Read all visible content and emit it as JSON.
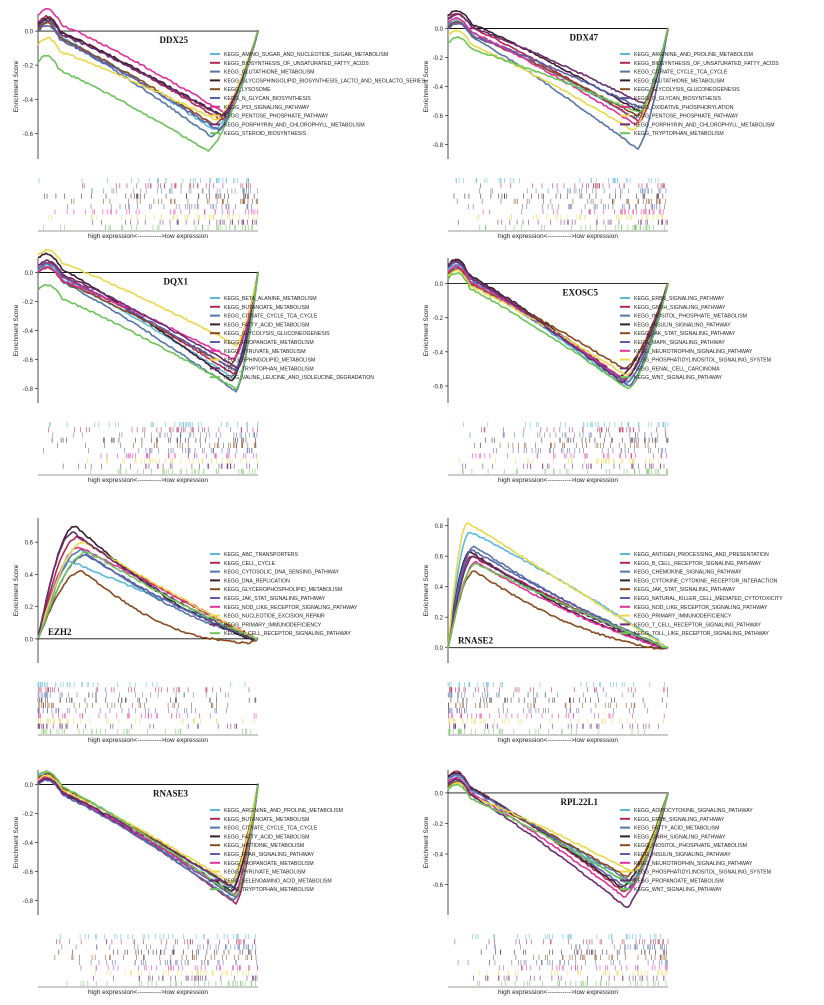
{
  "figure": {
    "y_axis_label": "Enrichment Score",
    "x_axis_label": "high expression<----------->low expression"
  },
  "chart_data": [
    {
      "type": "line",
      "gene": "DDX25",
      "direction": "negative",
      "ylabel": "Enrichment Score",
      "xlabel": "high expression<----------->low expression",
      "ylim": [
        -0.75,
        0.1
      ],
      "yticks": [
        0.0,
        -0.2,
        -0.4,
        -0.6
      ],
      "series": [
        {
          "name": "KEGG_AMINO_SUGAR_AND_NUCLEOTIDE_SUGAR_METABOLISM",
          "color": "#5bb8d8",
          "min_es": -0.58,
          "min_pos": 0.8,
          "start": 0.02
        },
        {
          "name": "KEGG_BIOSYNTHESIS_OF_UNSATURATED_FATTY_ACIDS",
          "color": "#b0284f",
          "min_es": -0.52,
          "min_pos": 0.83,
          "start": 0.05
        },
        {
          "name": "KEGG_GLUTATHIONE_METABOLISM",
          "color": "#5676a8",
          "min_es": -0.62,
          "min_pos": 0.79,
          "start": 0.02
        },
        {
          "name": "KEGG_GLYCOSPHINGOLIPID_BIOSYNTHESIS_LACTO_AND_NEOLACTO_SERIES",
          "color": "#3a1d2e",
          "min_es": -0.5,
          "min_pos": 0.84,
          "start": 0.04
        },
        {
          "name": "KEGG_LYSOSOME",
          "color": "#8a4a1e",
          "min_es": -0.55,
          "min_pos": 0.8,
          "start": 0.01
        },
        {
          "name": "KEGG_N_GLYCAN_BIOSYNTHESIS",
          "color": "#5b5fa8",
          "min_es": -0.58,
          "min_pos": 0.82,
          "start": 0.0
        },
        {
          "name": "KEGG_P53_SIGNALING_PATHWAY",
          "color": "#e0309a",
          "min_es": -0.48,
          "min_pos": 0.85,
          "start": 0.09
        },
        {
          "name": "KEGG_PENTOSE_PHOSPHATE_PATHWAY",
          "color": "#e8d84a",
          "min_es": -0.52,
          "min_pos": 0.81,
          "start": -0.08
        },
        {
          "name": "KEGG_PORPHYRIN_AND_CHLOROPHYLL_METABOLISM",
          "color": "#6b2c6e",
          "min_es": -0.5,
          "min_pos": 0.83,
          "start": 0.03
        },
        {
          "name": "KEGG_STEROID_BIOSYNTHESIS",
          "color": "#6cc35a",
          "min_es": -0.7,
          "min_pos": 0.77,
          "start": -0.18
        }
      ]
    },
    {
      "type": "line",
      "gene": "DDX47",
      "direction": "negative",
      "ylabel": "Enrichment Score",
      "xlabel": "high expression<----------->low expression",
      "ylim": [
        -0.9,
        0.1
      ],
      "yticks": [
        0.0,
        -0.2,
        -0.4,
        -0.6,
        -0.8
      ],
      "series": [
        {
          "name": "KEGG_ARGININE_AND_PROLINE_METABOLISM",
          "color": "#5bb8d8",
          "min_es": -0.62,
          "min_pos": 0.85,
          "start": 0.03
        },
        {
          "name": "KEGG_BIOSYNTHESIS_OF_UNSATURATED_FATTY_ACIDS",
          "color": "#b0284f",
          "min_es": -0.64,
          "min_pos": 0.87,
          "start": 0.07
        },
        {
          "name": "KEGG_CITRATE_CYCLE_TCA_CYCLE",
          "color": "#5676a8",
          "min_es": -0.83,
          "min_pos": 0.86,
          "start": 0.02
        },
        {
          "name": "KEGG_GLUTATHIONE_METABOLISM",
          "color": "#3a1d2e",
          "min_es": -0.58,
          "min_pos": 0.88,
          "start": 0.09
        },
        {
          "name": "KEGG_GLYCOLYSIS_GLUCONEOGENESIS",
          "color": "#8a4a1e",
          "min_es": -0.6,
          "min_pos": 0.86,
          "start": 0.01
        },
        {
          "name": "KEGG_O_GLYCAN_BIOSYNTHESIS",
          "color": "#5b5fa8",
          "min_es": -0.55,
          "min_pos": 0.88,
          "start": 0.0
        },
        {
          "name": "KEGG_OXIDATIVE_PHOSPHORYLATION",
          "color": "#e0309a",
          "min_es": -0.66,
          "min_pos": 0.85,
          "start": 0.04
        },
        {
          "name": "KEGG_PENTOSE_PHOSPHATE_PATHWAY",
          "color": "#e8d84a",
          "min_es": -0.7,
          "min_pos": 0.84,
          "start": -0.05
        },
        {
          "name": "KEGG_PORPHYRIN_AND_CHLOROPHYLL_METABOLISM",
          "color": "#6b2c6e",
          "min_es": -0.52,
          "min_pos": 0.89,
          "start": 0.06
        },
        {
          "name": "KEGG_TRYPTOPHAN_METABOLISM",
          "color": "#6cc35a",
          "min_es": -0.58,
          "min_pos": 0.87,
          "start": -0.1
        }
      ]
    },
    {
      "type": "line",
      "gene": "DQX1",
      "direction": "negative",
      "ylabel": "Enrichment Score",
      "xlabel": "high expression<----------->low expression",
      "ylim": [
        -0.9,
        0.1
      ],
      "yticks": [
        0.0,
        -0.2,
        -0.4,
        -0.6,
        -0.8
      ],
      "series": [
        {
          "name": "KEGG_BETA_ALANINE_METABOLISM",
          "color": "#5bb8d8",
          "min_es": -0.72,
          "min_pos": 0.88,
          "start": 0.02
        },
        {
          "name": "KEGG_BUTANOATE_METABOLISM",
          "color": "#b0284f",
          "min_es": -0.7,
          "min_pos": 0.89,
          "start": 0.04
        },
        {
          "name": "KEGG_CITRATE_CYCLE_TCA_CYCLE",
          "color": "#5676a8",
          "min_es": -0.82,
          "min_pos": 0.9,
          "start": 0.01
        },
        {
          "name": "KEGG_FATTY_ACID_METABOLISM",
          "color": "#3a1d2e",
          "min_es": -0.75,
          "min_pos": 0.88,
          "start": 0.1
        },
        {
          "name": "KEGG_GLYCOLYSIS_GLUCONEOGENESIS",
          "color": "#8a4a1e",
          "min_es": -0.65,
          "min_pos": 0.87,
          "start": 0.0
        },
        {
          "name": "KEGG_PROPANOATE_METABOLISM",
          "color": "#5b5fa8",
          "min_es": -0.68,
          "min_pos": 0.9,
          "start": 0.03
        },
        {
          "name": "KEGG_PYRUVATE_METABOLISM",
          "color": "#e0309a",
          "min_es": -0.6,
          "min_pos": 0.89,
          "start": 0.0
        },
        {
          "name": "KEGG_SPHINGOLIPID_METABOLISM",
          "color": "#e8d84a",
          "min_es": -0.5,
          "min_pos": 0.9,
          "start": 0.12
        },
        {
          "name": "KEGG_TRYPTOPHAN_METABOLISM",
          "color": "#6b2c6e",
          "min_es": -0.66,
          "min_pos": 0.91,
          "start": 0.05
        },
        {
          "name": "KEGG_VALINE_LEUCINE_AND_ISOLEUCINE_DEGRADATION",
          "color": "#6cc35a",
          "min_es": -0.8,
          "min_pos": 0.9,
          "start": -0.12
        }
      ]
    },
    {
      "type": "line",
      "gene": "EXOSC5",
      "direction": "negative",
      "ylabel": "Enrichment Score",
      "xlabel": "high expression<----------->low expression",
      "ylim": [
        -0.7,
        0.15
      ],
      "yticks": [
        0.0,
        -0.2,
        -0.4,
        -0.6
      ],
      "series": [
        {
          "name": "KEGG_ERBB_SIGNALING_PATHWAY",
          "color": "#5bb8d8",
          "min_es": -0.6,
          "min_pos": 0.8,
          "start": 0.08
        },
        {
          "name": "KEGG_GNRH_SIGNALING_PATHWAY",
          "color": "#b0284f",
          "min_es": -0.57,
          "min_pos": 0.79,
          "start": 0.1
        },
        {
          "name": "KEGG_INOSITOL_PHOSPHATE_METABOLISM",
          "color": "#5676a8",
          "min_es": -0.58,
          "min_pos": 0.81,
          "start": 0.06
        },
        {
          "name": "KEGG_INSULIN_SIGNALING_PATHWAY",
          "color": "#3a1d2e",
          "min_es": -0.55,
          "min_pos": 0.78,
          "start": 0.11
        },
        {
          "name": "KEGG_JAK_STAT_SIGNALING_PATHWAY",
          "color": "#8a4a1e",
          "min_es": -0.5,
          "min_pos": 0.8,
          "start": 0.05
        },
        {
          "name": "KEGG_MAPK_SIGNALING_PATHWAY",
          "color": "#5b5fa8",
          "min_es": -0.6,
          "min_pos": 0.82,
          "start": 0.09
        },
        {
          "name": "KEGG_NEUROTROPHIN_SIGNALING_PATHWAY",
          "color": "#e0309a",
          "min_es": -0.56,
          "min_pos": 0.8,
          "start": 0.07
        },
        {
          "name": "KEGG_PHOSPHATIDYLINOSITOL_SIGNALING_SYSTEM",
          "color": "#e8d84a",
          "min_es": -0.54,
          "min_pos": 0.81,
          "start": 0.04
        },
        {
          "name": "KEGG_RENAL_CELL_CARCINOMA",
          "color": "#6b2c6e",
          "min_es": -0.58,
          "min_pos": 0.79,
          "start": 0.1
        },
        {
          "name": "KEGG_WNT_SIGNALING_PATHWAY",
          "color": "#6cc35a",
          "min_es": -0.62,
          "min_pos": 0.82,
          "start": 0.03
        }
      ]
    },
    {
      "type": "line",
      "gene": "EZH2",
      "direction": "positive",
      "ylabel": "Enrichment Score",
      "xlabel": "high expression<----------->low expression",
      "ylim": [
        -0.15,
        0.75
      ],
      "yticks": [
        0.0,
        0.2,
        0.4,
        0.6
      ],
      "series": [
        {
          "name": "KEGG_ABC_TRANSPORTERS",
          "color": "#5bb8d8",
          "max_es": 0.48,
          "max_pos": 0.15,
          "end_dip": 0.0
        },
        {
          "name": "KEGG_CELL_CYCLE",
          "color": "#b0284f",
          "max_es": 0.63,
          "max_pos": 0.18,
          "end_dip": -0.02
        },
        {
          "name": "KEGG_CYTOSOLIC_DNA_SENSING_PATHWAY",
          "color": "#5676a8",
          "max_es": 0.55,
          "max_pos": 0.2,
          "end_dip": -0.05
        },
        {
          "name": "KEGG_DNA_REPLICATION",
          "color": "#3a1d2e",
          "max_es": 0.7,
          "max_pos": 0.17,
          "end_dip": -0.07
        },
        {
          "name": "KEGG_GLYCEROPHOSPHOLIPID_METABOLISM",
          "color": "#8a4a1e",
          "max_es": 0.42,
          "max_pos": 0.2,
          "end_dip": -0.1
        },
        {
          "name": "KEGG_JAK_STAT_SIGNALING_PATHWAY",
          "color": "#5b5fa8",
          "max_es": 0.52,
          "max_pos": 0.22,
          "end_dip": -0.03
        },
        {
          "name": "KEGG_NOD_LIKE_RECEPTOR_SIGNALING_PATHWAY",
          "color": "#e0309a",
          "max_es": 0.57,
          "max_pos": 0.19,
          "end_dip": 0.0
        },
        {
          "name": "KEGG_NUCLEOTIDE_EXCISION_REPAIR",
          "color": "#e8d84a",
          "max_es": 0.6,
          "max_pos": 0.21,
          "end_dip": -0.01
        },
        {
          "name": "KEGG_PRIMARY_IMMUNODEFICIENCY",
          "color": "#6b2c6e",
          "max_es": 0.66,
          "max_pos": 0.16,
          "end_dip": -0.04
        },
        {
          "name": "KEGG_T_CELL_RECEPTOR_SIGNALING_PATHWAY",
          "color": "#6cc35a",
          "max_es": 0.54,
          "max_pos": 0.23,
          "end_dip": -0.02
        }
      ]
    },
    {
      "type": "line",
      "gene": "RNASE2",
      "direction": "positive",
      "ylabel": "Enrichment Score",
      "xlabel": "high expression<----------->low expression",
      "ylim": [
        -0.1,
        0.85
      ],
      "yticks": [
        0.0,
        0.2,
        0.4,
        0.6,
        0.8
      ],
      "series": [
        {
          "name": "KEGG_ANTIGEN_PROCESSING_AND_PRESENTATION",
          "color": "#5bb8d8",
          "max_es": 0.76,
          "max_pos": 0.1,
          "end_dip": 0.02
        },
        {
          "name": "KEGG_B_CELL_RECEPTOR_SIGNALING_PATHWAY",
          "color": "#b0284f",
          "max_es": 0.6,
          "max_pos": 0.11,
          "end_dip": -0.02
        },
        {
          "name": "KEGG_CHEMOKINE_SIGNALING_PATHWAY",
          "color": "#5676a8",
          "max_es": 0.66,
          "max_pos": 0.12,
          "end_dip": -0.03
        },
        {
          "name": "KEGG_CYTOKINE_CYTOKINE_RECEPTOR_INTERACTION",
          "color": "#3a1d2e",
          "max_es": 0.63,
          "max_pos": 0.1,
          "end_dip": -0.05
        },
        {
          "name": "KEGG_JAK_STAT_SIGNALING_PATHWAY",
          "color": "#8a4a1e",
          "max_es": 0.5,
          "max_pos": 0.12,
          "end_dip": -0.07
        },
        {
          "name": "KEGG_NATURAL_KILLER_CELL_MEDIATED_CYTOTOXICITY",
          "color": "#5b5fa8",
          "max_es": 0.64,
          "max_pos": 0.11,
          "end_dip": -0.02
        },
        {
          "name": "KEGG_NOD_LIKE_RECEPTOR_SIGNALING_PATHWAY",
          "color": "#e0309a",
          "max_es": 0.56,
          "max_pos": 0.13,
          "end_dip": -0.04
        },
        {
          "name": "KEGG_PRIMARY_IMMUNODEFICIENCY",
          "color": "#e8d84a",
          "max_es": 0.82,
          "max_pos": 0.09,
          "end_dip": 0.0
        },
        {
          "name": "KEGG_T_CELL_RECEPTOR_SIGNALING_PATHWAY",
          "color": "#6b2c6e",
          "max_es": 0.6,
          "max_pos": 0.12,
          "end_dip": -0.03
        },
        {
          "name": "KEGG_TOLL_LIKE_RECEPTOR_SIGNALING_PATHWAY",
          "color": "#6cc35a",
          "max_es": 0.55,
          "max_pos": 0.13,
          "end_dip": -0.01
        }
      ]
    },
    {
      "type": "line",
      "gene": "RNASE3",
      "direction": "negative",
      "ylabel": "Enrichment Score",
      "xlabel": "high expression<----------->low expression",
      "ylim": [
        -0.9,
        0.1
      ],
      "yticks": [
        0.0,
        -0.2,
        -0.4,
        -0.6,
        -0.8
      ],
      "series": [
        {
          "name": "KEGG_ARGININE_AND_PROLINE_METABOLISM",
          "color": "#5bb8d8",
          "min_es": -0.72,
          "min_pos": 0.88,
          "start": 0.05
        },
        {
          "name": "KEGG_BUTANOATE_METABOLISM",
          "color": "#b0284f",
          "min_es": -0.82,
          "min_pos": 0.9,
          "start": 0.03
        },
        {
          "name": "KEGG_CITRATE_CYCLE_TCA_CYCLE",
          "color": "#5676a8",
          "min_es": -0.8,
          "min_pos": 0.89,
          "start": 0.02
        },
        {
          "name": "KEGG_FATTY_ACID_METABOLISM",
          "color": "#3a1d2e",
          "min_es": -0.74,
          "min_pos": 0.88,
          "start": 0.01
        },
        {
          "name": "KEGG_HISTIDINE_METABOLISM",
          "color": "#8a4a1e",
          "min_es": -0.7,
          "min_pos": 0.87,
          "start": 0.04
        },
        {
          "name": "KEGG_PPAR_SIGNALING_PATHWAY",
          "color": "#5b5fa8",
          "min_es": -0.78,
          "min_pos": 0.9,
          "start": 0.0
        },
        {
          "name": "KEGG_PROPANOATE_METABOLISM",
          "color": "#e0309a",
          "min_es": -0.76,
          "min_pos": 0.89,
          "start": 0.02
        },
        {
          "name": "KEGG_PYRUVATE_METABOLISM",
          "color": "#e8d84a",
          "min_es": -0.68,
          "min_pos": 0.88,
          "start": 0.03
        },
        {
          "name": "KEGG_SELENOAMINO_ACID_METABOLISM",
          "color": "#6b2c6e",
          "min_es": -0.73,
          "min_pos": 0.91,
          "start": 0.01
        },
        {
          "name": "KEGG_TRYPTOPHAN_METABOLISM",
          "color": "#6cc35a",
          "min_es": -0.77,
          "min_pos": 0.9,
          "start": 0.06
        }
      ]
    },
    {
      "type": "line",
      "gene": "RPL22L1",
      "direction": "negative",
      "ylabel": "Enrichment Score",
      "xlabel": "high expression<----------->low expression",
      "ylim": [
        -0.8,
        0.15
      ],
      "yticks": [
        0.0,
        -0.2,
        -0.4,
        -0.6
      ],
      "series": [
        {
          "name": "KEGG_ADIPOCYTOKINE_SIGNALING_PATHWAY",
          "color": "#5bb8d8",
          "min_es": -0.6,
          "min_pos": 0.82,
          "start": 0.08
        },
        {
          "name": "KEGG_ERBB_SIGNALING_PATHWAY",
          "color": "#b0284f",
          "min_es": -0.65,
          "min_pos": 0.8,
          "start": 0.11
        },
        {
          "name": "KEGG_FATTY_ACID_METABOLISM",
          "color": "#5676a8",
          "min_es": -0.58,
          "min_pos": 0.83,
          "start": 0.05
        },
        {
          "name": "KEGG_GNRH_SIGNALING_PATHWAY",
          "color": "#3a1d2e",
          "min_es": -0.62,
          "min_pos": 0.79,
          "start": 0.1
        },
        {
          "name": "KEGG_INOSITOL_PHOSPHATE_METABOLISM",
          "color": "#8a4a1e",
          "min_es": -0.55,
          "min_pos": 0.81,
          "start": 0.04
        },
        {
          "name": "KEGG_INSULIN_SIGNALING_PATHWAY",
          "color": "#5b5fa8",
          "min_es": -0.63,
          "min_pos": 0.82,
          "start": 0.09
        },
        {
          "name": "KEGG_NEUROTROPHIN_SIGNALING_PATHWAY",
          "color": "#e0309a",
          "min_es": -0.68,
          "min_pos": 0.8,
          "start": 0.07
        },
        {
          "name": "KEGG_PHOSPHATIDYLINOSITOL_SIGNALING_SYSTEM",
          "color": "#e8d84a",
          "min_es": -0.52,
          "min_pos": 0.84,
          "start": 0.03
        },
        {
          "name": "KEGG_PROPANOATE_METABOLISM",
          "color": "#6b2c6e",
          "min_es": -0.75,
          "min_pos": 0.81,
          "start": 0.06
        },
        {
          "name": "KEGG_WNT_SIGNALING_PATHWAY",
          "color": "#6cc35a",
          "min_es": -0.6,
          "min_pos": 0.83,
          "start": 0.02
        }
      ]
    }
  ]
}
